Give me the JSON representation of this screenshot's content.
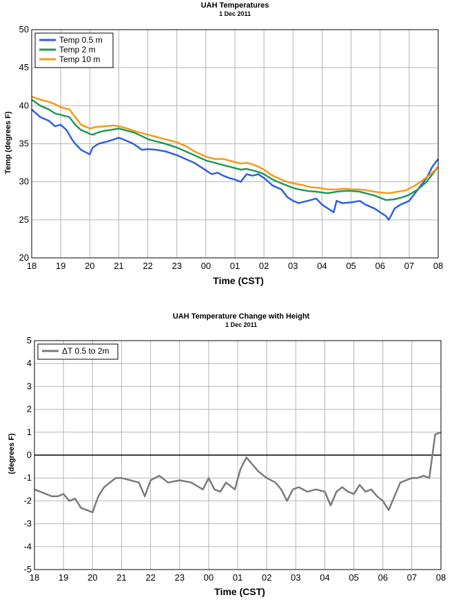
{
  "charts": [
    {
      "type": "line",
      "title": "UAH Temperatures",
      "subtitle": "1 Dec 2011",
      "xlabel": "Time (CST)",
      "ylabel": "Temp (degrees F)",
      "x_tick_labels": [
        "18",
        "19",
        "20",
        "21",
        "22",
        "23",
        "00",
        "01",
        "02",
        "03",
        "04",
        "05",
        "06",
        "07",
        "08"
      ],
      "x_range_hours": [
        0,
        14
      ],
      "ylim": [
        20,
        50
      ],
      "y_ticks": [
        20,
        25,
        30,
        35,
        40,
        45,
        50
      ],
      "grid": true,
      "legend_position": "top-left",
      "series": [
        {
          "name": "Temp 0.5 m",
          "color": "#2f5fe0",
          "x": [
            0,
            0.3,
            0.6,
            0.8,
            1.0,
            1.2,
            1.4,
            1.5,
            1.7,
            1.9,
            2.0,
            2.1,
            2.3,
            2.5,
            2.7,
            3.0,
            3.2,
            3.5,
            3.8,
            4.0,
            4.3,
            4.6,
            5.0,
            5.3,
            5.6,
            6.0,
            6.2,
            6.4,
            6.6,
            6.8,
            7.0,
            7.2,
            7.4,
            7.6,
            7.8,
            8.0,
            8.3,
            8.6,
            8.8,
            9.0,
            9.2,
            9.5,
            9.8,
            10.0,
            10.2,
            10.4,
            10.5,
            10.7,
            11.0,
            11.3,
            11.5,
            11.8,
            12.0,
            12.2,
            12.3,
            12.5,
            12.7,
            13.0,
            13.3,
            13.6,
            13.8,
            14.0
          ],
          "values": [
            39.5,
            38.5,
            38.0,
            37.3,
            37.5,
            36.8,
            35.5,
            35.0,
            34.2,
            33.8,
            33.6,
            34.5,
            35.0,
            35.2,
            35.4,
            35.8,
            35.5,
            35.0,
            34.2,
            34.3,
            34.2,
            34.0,
            33.5,
            33.0,
            32.5,
            31.5,
            31.0,
            31.2,
            30.8,
            30.5,
            30.3,
            30.0,
            31.0,
            30.8,
            31.0,
            30.5,
            29.5,
            29.0,
            28.0,
            27.5,
            27.2,
            27.5,
            27.8,
            27.0,
            26.5,
            26.0,
            27.5,
            27.2,
            27.3,
            27.5,
            27.0,
            26.5,
            26.0,
            25.5,
            25.0,
            26.5,
            27.0,
            27.5,
            29.0,
            30.5,
            32.0,
            33.0
          ]
        },
        {
          "name": "Temp 2 m",
          "color": "#1e9a55",
          "x": [
            0,
            0.3,
            0.6,
            0.8,
            1.0,
            1.3,
            1.5,
            1.7,
            1.9,
            2.0,
            2.1,
            2.3,
            2.5,
            2.7,
            3.0,
            3.2,
            3.5,
            3.8,
            4.0,
            4.3,
            4.6,
            5.0,
            5.3,
            5.6,
            6.0,
            6.3,
            6.6,
            6.8,
            7.0,
            7.2,
            7.4,
            7.6,
            7.8,
            8.0,
            8.3,
            8.6,
            8.8,
            9.0,
            9.2,
            9.5,
            9.8,
            10.0,
            10.2,
            10.5,
            10.8,
            11.0,
            11.3,
            11.5,
            11.8,
            12.0,
            12.2,
            12.5,
            12.8,
            13.0,
            13.3,
            13.6,
            13.8,
            14.0
          ],
          "values": [
            40.8,
            40.0,
            39.5,
            39.0,
            38.8,
            38.5,
            37.5,
            36.8,
            36.5,
            36.3,
            36.2,
            36.5,
            36.7,
            36.8,
            37.0,
            36.8,
            36.5,
            36.0,
            35.6,
            35.3,
            35.0,
            34.5,
            34.0,
            33.5,
            32.8,
            32.5,
            32.2,
            32.0,
            31.8,
            31.6,
            31.7,
            31.5,
            31.3,
            31.0,
            30.3,
            29.8,
            29.5,
            29.2,
            29.0,
            28.8,
            28.7,
            28.6,
            28.5,
            28.7,
            28.8,
            28.8,
            28.7,
            28.5,
            28.2,
            27.9,
            27.6,
            27.7,
            28.0,
            28.3,
            29.0,
            30.0,
            31.0,
            32.0
          ]
        },
        {
          "name": "Temp 10 m",
          "color": "#f59a14",
          "x": [
            0,
            0.3,
            0.6,
            0.8,
            1.0,
            1.3,
            1.5,
            1.7,
            1.9,
            2.0,
            2.2,
            2.5,
            2.8,
            3.0,
            3.3,
            3.6,
            3.9,
            4.2,
            4.5,
            5.0,
            5.3,
            5.6,
            6.0,
            6.3,
            6.6,
            6.8,
            7.0,
            7.2,
            7.4,
            7.6,
            7.8,
            8.0,
            8.3,
            8.6,
            8.8,
            9.0,
            9.3,
            9.6,
            9.9,
            10.2,
            10.5,
            10.8,
            11.0,
            11.3,
            11.5,
            11.8,
            12.0,
            12.3,
            12.6,
            12.9,
            13.2,
            13.5,
            13.8,
            14.0
          ],
          "values": [
            41.2,
            40.8,
            40.5,
            40.2,
            39.8,
            39.5,
            38.5,
            37.5,
            37.2,
            37.0,
            37.2,
            37.3,
            37.4,
            37.3,
            37.0,
            36.6,
            36.3,
            36.0,
            35.7,
            35.2,
            34.7,
            34.0,
            33.3,
            33.0,
            33.0,
            32.8,
            32.6,
            32.4,
            32.5,
            32.3,
            32.0,
            31.6,
            30.8,
            30.3,
            30.0,
            29.8,
            29.6,
            29.3,
            29.2,
            29.0,
            29.0,
            29.1,
            29.0,
            29.0,
            28.9,
            28.7,
            28.6,
            28.5,
            28.7,
            28.9,
            29.5,
            30.3,
            31.2,
            32.0
          ]
        }
      ]
    },
    {
      "type": "line",
      "title": "UAH Temperature Change with Height",
      "subtitle": "1 Dec 2011",
      "xlabel": "Time (CST)",
      "ylabel": "(degrees F)",
      "x_tick_labels": [
        "18",
        "19",
        "20",
        "21",
        "22",
        "23",
        "00",
        "01",
        "02",
        "03",
        "04",
        "05",
        "06",
        "07",
        "08"
      ],
      "x_range_hours": [
        0,
        14
      ],
      "ylim": [
        -5,
        5
      ],
      "y_ticks": [
        -5,
        -4,
        -3,
        -2,
        -1,
        0,
        1,
        2,
        3,
        4,
        5
      ],
      "grid": true,
      "zero_line": true,
      "legend_position": "top-left",
      "series": [
        {
          "name": "ΔT 0.5 to 2m",
          "color": "#7a7a7a",
          "x": [
            0,
            0.2,
            0.4,
            0.6,
            0.8,
            1.0,
            1.2,
            1.4,
            1.6,
            1.8,
            2.0,
            2.2,
            2.4,
            2.6,
            2.8,
            3.0,
            3.3,
            3.6,
            3.8,
            4.0,
            4.3,
            4.6,
            5.0,
            5.4,
            5.8,
            6.0,
            6.2,
            6.4,
            6.6,
            6.9,
            7.1,
            7.3,
            7.5,
            7.7,
            8.0,
            8.3,
            8.5,
            8.7,
            8.9,
            9.1,
            9.4,
            9.7,
            10.0,
            10.2,
            10.4,
            10.6,
            10.8,
            11.0,
            11.2,
            11.4,
            11.6,
            11.8,
            12.0,
            12.2,
            12.4,
            12.6,
            12.8,
            13.0,
            13.2,
            13.4,
            13.6,
            13.8,
            14.0
          ],
          "values": [
            -1.5,
            -1.6,
            -1.7,
            -1.8,
            -1.8,
            -1.7,
            -2.0,
            -1.9,
            -2.3,
            -2.4,
            -2.5,
            -1.8,
            -1.4,
            -1.2,
            -1.0,
            -1.0,
            -1.1,
            -1.2,
            -1.8,
            -1.1,
            -0.9,
            -1.2,
            -1.1,
            -1.2,
            -1.5,
            -1.0,
            -1.5,
            -1.6,
            -1.2,
            -1.5,
            -0.6,
            -0.1,
            -0.4,
            -0.7,
            -1.0,
            -1.2,
            -1.5,
            -2.0,
            -1.5,
            -1.4,
            -1.6,
            -1.5,
            -1.6,
            -2.2,
            -1.6,
            -1.4,
            -1.6,
            -1.7,
            -1.3,
            -1.6,
            -1.5,
            -1.8,
            -2.0,
            -2.4,
            -1.8,
            -1.2,
            -1.1,
            -1.0,
            -1.0,
            -0.9,
            -1.0,
            0.9,
            1.0
          ]
        }
      ]
    }
  ]
}
